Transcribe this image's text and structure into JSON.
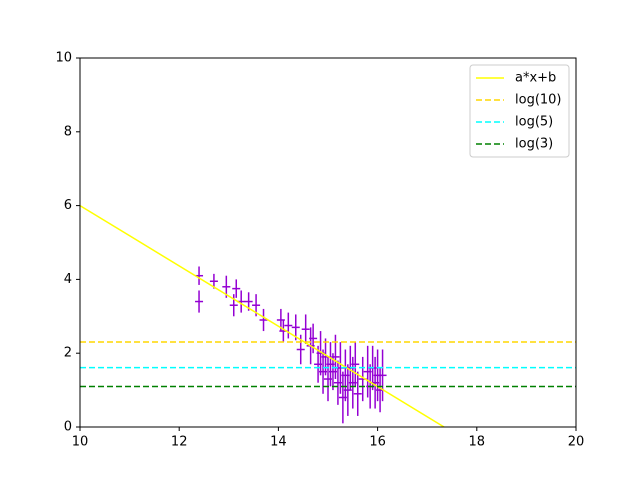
{
  "chart_data": {
    "type": "errorbar",
    "xlim": [
      10,
      20
    ],
    "ylim": [
      0,
      10
    ],
    "xticks": [
      10,
      12,
      14,
      16,
      18,
      20
    ],
    "yticks": [
      0,
      2,
      4,
      6,
      8,
      10
    ],
    "legend": "upper right",
    "series": [
      {
        "name": "a*x+b",
        "color": "#ffff00",
        "style": "solid",
        "x": [
          10,
          17.34
        ],
        "values": [
          6.0,
          0
        ]
      },
      {
        "name": "log(10)",
        "color": "#ffd700",
        "style": "dashed",
        "x": [
          10,
          20
        ],
        "values": [
          2.303,
          2.303
        ]
      },
      {
        "name": "log(5)",
        "color": "#00ffff",
        "style": "dashed",
        "x": [
          10,
          20
        ],
        "values": [
          1.609,
          1.609
        ]
      },
      {
        "name": "log(3)",
        "color": "#008000",
        "style": "dashed",
        "x": [
          10,
          20
        ],
        "values": [
          1.099,
          1.099
        ]
      }
    ],
    "points": {
      "color": "#9400d3",
      "x": [
        12.4,
        12.4,
        12.7,
        12.95,
        13.1,
        13.15,
        13.25,
        13.4,
        13.55,
        13.7,
        14.05,
        14.1,
        14.2,
        14.35,
        14.45,
        14.55,
        14.65,
        14.7,
        14.8,
        14.85,
        14.9,
        14.95,
        15.0,
        15.05,
        15.1,
        15.15,
        15.2,
        15.25,
        15.3,
        15.35,
        15.4,
        15.45,
        15.5,
        15.55,
        15.6,
        15.7,
        15.8,
        15.85,
        15.9,
        15.95,
        16.0,
        16.05,
        16.1
      ],
      "values": [
        4.1,
        3.4,
        3.95,
        3.8,
        3.3,
        3.75,
        3.4,
        3.4,
        3.3,
        2.9,
        2.9,
        2.6,
        2.75,
        2.7,
        2.1,
        2.65,
        2.2,
        2.4,
        1.7,
        2.0,
        1.5,
        1.9,
        1.3,
        1.7,
        1.5,
        1.9,
        1.2,
        1.6,
        0.8,
        1.4,
        1.0,
        1.6,
        1.2,
        1.7,
        0.9,
        1.3,
        1.5,
        1.1,
        1.6,
        1.2,
        1.4,
        1.0,
        1.4
      ],
      "errors": [
        0.25,
        0.3,
        0.2,
        0.3,
        0.3,
        0.25,
        0.3,
        0.25,
        0.3,
        0.3,
        0.3,
        0.3,
        0.35,
        0.35,
        0.4,
        0.4,
        0.5,
        0.4,
        0.5,
        0.6,
        0.6,
        0.5,
        0.6,
        0.6,
        0.5,
        0.6,
        0.6,
        0.7,
        0.7,
        0.7,
        0.7,
        0.6,
        0.7,
        0.6,
        0.6,
        0.6,
        0.7,
        0.6,
        0.6,
        0.7,
        0.7,
        0.6,
        0.7
      ]
    }
  }
}
